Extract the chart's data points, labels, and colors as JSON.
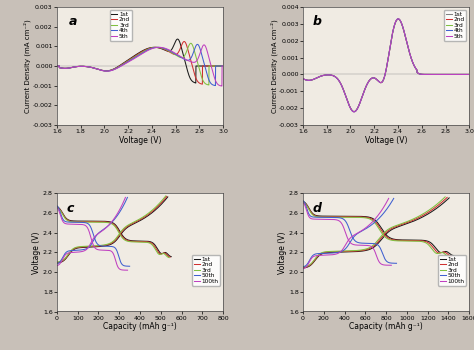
{
  "panel_a": {
    "label": "a",
    "xlim": [
      1.6,
      3.0
    ],
    "ylim": [
      -0.003,
      0.003
    ],
    "xlabel": "Voltage (V)",
    "ylabel": "Current Density (mA cm⁻²)",
    "yticks": [
      -0.003,
      -0.002,
      -0.001,
      0.0,
      0.001,
      0.002,
      0.003
    ],
    "xticks": [
      1.6,
      1.8,
      2.0,
      2.2,
      2.4,
      2.6,
      2.8,
      3.0
    ],
    "legend": [
      "1st",
      "2nd",
      "3rd",
      "4th",
      "5th"
    ],
    "colors": [
      "#1a1a1a",
      "#d03030",
      "#80c040",
      "#4060d0",
      "#c040c0"
    ]
  },
  "panel_b": {
    "label": "b",
    "xlim": [
      1.6,
      3.0
    ],
    "ylim": [
      -0.003,
      0.004
    ],
    "xlabel": "Voltage (V)",
    "ylabel": "Current Density (mA cm⁻²)",
    "yticks": [
      -0.003,
      -0.002,
      -0.001,
      0.0,
      0.001,
      0.002,
      0.003,
      0.004
    ],
    "xticks": [
      1.6,
      1.8,
      2.0,
      2.2,
      2.4,
      2.6,
      2.8,
      3.0
    ],
    "legend": [
      "1st",
      "2nd",
      "3rd",
      "4th",
      "5th"
    ],
    "colors": [
      "#808080",
      "#d03030",
      "#80c040",
      "#4060d0",
      "#c040c0"
    ]
  },
  "panel_c": {
    "label": "c",
    "xlim": [
      0,
      800
    ],
    "ylim": [
      1.6,
      2.8
    ],
    "xlabel": "Capacity (mAh g⁻¹)",
    "ylabel": "Voltage (V)",
    "yticks": [
      1.6,
      1.8,
      2.0,
      2.2,
      2.4,
      2.6,
      2.8
    ],
    "xticks": [
      0,
      100,
      200,
      300,
      400,
      500,
      600,
      700,
      800
    ],
    "legend": [
      "1st",
      "2nd",
      "3rd",
      "50th",
      "100th"
    ],
    "colors": [
      "#1a1a1a",
      "#d03030",
      "#80c040",
      "#4060d0",
      "#c040c0"
    ]
  },
  "panel_d": {
    "label": "d",
    "xlim": [
      0,
      1600
    ],
    "ylim": [
      1.6,
      2.8
    ],
    "xlabel": "Capacity (mAh g⁻¹)",
    "ylabel": "Voltage (V)",
    "yticks": [
      1.6,
      1.8,
      2.0,
      2.2,
      2.4,
      2.6,
      2.8
    ],
    "xticks": [
      0,
      200,
      400,
      600,
      800,
      1000,
      1200,
      1400,
      1600
    ],
    "legend": [
      "1st",
      "2nd",
      "3rd",
      "50th",
      "100th"
    ],
    "colors": [
      "#1a1a1a",
      "#d03030",
      "#80c040",
      "#4060d0",
      "#c040c0"
    ]
  },
  "bg_color": "#f0ebe3",
  "fig_bg": "#c8c0b8"
}
